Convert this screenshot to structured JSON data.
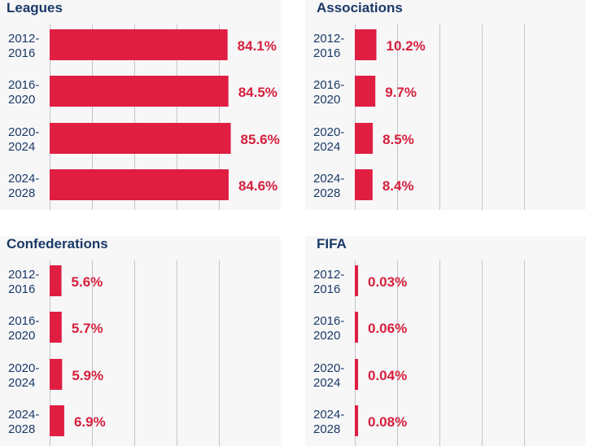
{
  "chart_data": [
    {
      "type": "bar",
      "orientation": "horizontal",
      "title": "Leagues",
      "categories": [
        "2012-2016",
        "2016-2020",
        "2020-2024",
        "2024-2028"
      ],
      "values": [
        84.1,
        84.5,
        85.6,
        84.6
      ],
      "value_labels": [
        "84.1%",
        "84.5%",
        "85.6%",
        "84.6%"
      ],
      "xlim": [
        0,
        100
      ],
      "grid": true
    },
    {
      "type": "bar",
      "orientation": "horizontal",
      "title": "Associations",
      "categories": [
        "2012-2016",
        "2016-2020",
        "2020-2024",
        "2024-2028"
      ],
      "values": [
        10.2,
        9.7,
        8.5,
        8.4
      ],
      "value_labels": [
        "10.2%",
        "9.7%",
        "8.5%",
        "8.4%"
      ],
      "xlim": [
        0,
        100
      ],
      "grid": true
    },
    {
      "type": "bar",
      "orientation": "horizontal",
      "title": "Confederations",
      "categories": [
        "2012-2016",
        "2016-2020",
        "2020-2024",
        "2024-2028"
      ],
      "values": [
        5.6,
        5.7,
        5.9,
        6.9
      ],
      "value_labels": [
        "5.6%",
        "5.7%",
        "5.9%",
        "6.9%"
      ],
      "xlim": [
        0,
        100
      ],
      "grid": true
    },
    {
      "type": "bar",
      "orientation": "horizontal",
      "title": "FIFA",
      "categories": [
        "2012-2016",
        "2016-2020",
        "2020-2024",
        "2024-2028"
      ],
      "values": [
        0.03,
        0.06,
        0.04,
        0.08
      ],
      "value_labels": [
        "0.03%",
        "0.06%",
        "0.04%",
        "0.08%"
      ],
      "xlim": [
        0,
        100
      ],
      "grid": true
    }
  ],
  "colors": {
    "bar": "#e01e42",
    "value_text": "#d61f3c",
    "title_text": "#1b3a66",
    "category_text": "#1b3a66",
    "panel_bg": "#f7f7f8",
    "grid": "#c4c4c8"
  }
}
